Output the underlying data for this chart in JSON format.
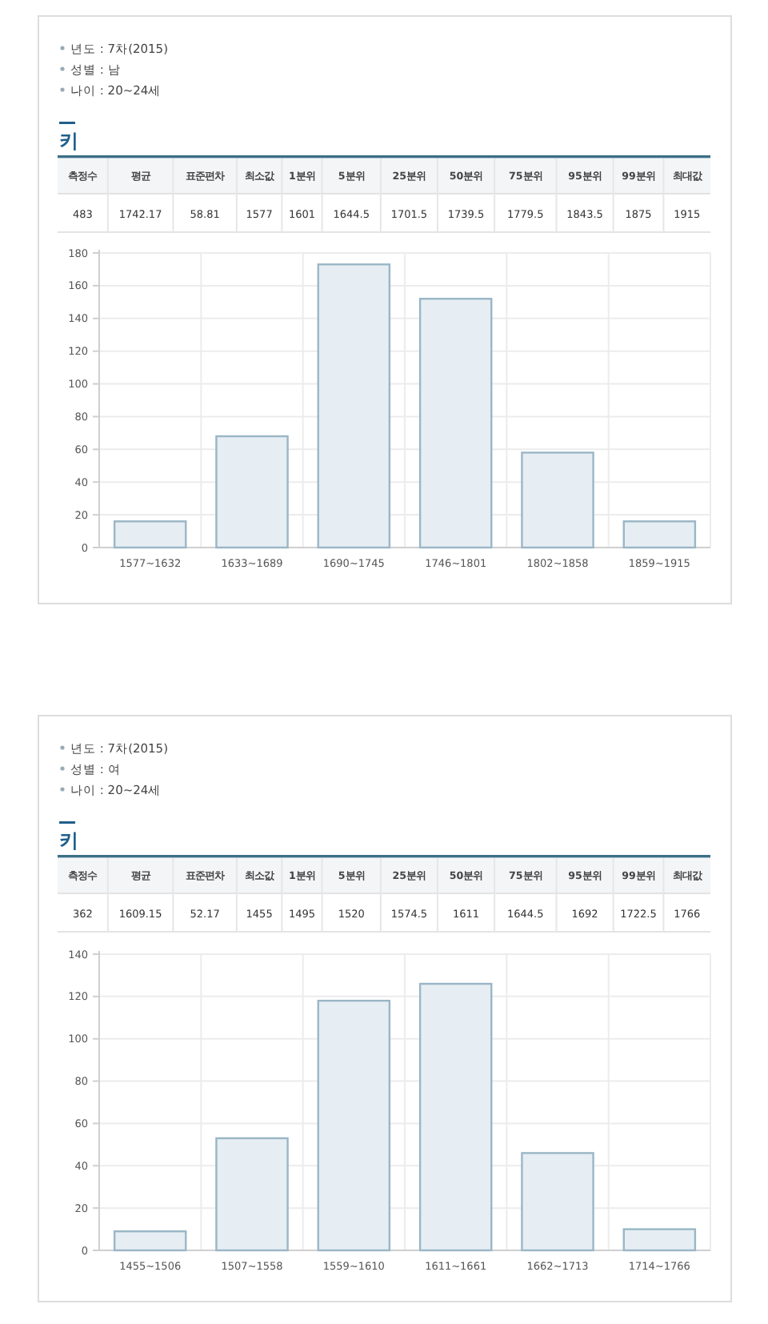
{
  "chart_data": [
    {
      "type": "other",
      "title": "키",
      "annotations": [
        "년도 : 7차(2015)",
        "성별 : 남",
        "나이 : 20~24세"
      ],
      "categories": [
        "측정수",
        "평균",
        "표준편차",
        "최소값",
        "1분위",
        "5분위",
        "25분위",
        "50분위",
        "75분위",
        "95분위",
        "99분위",
        "최대값"
      ],
      "values": [
        483,
        1742.17,
        58.81,
        1577,
        1601,
        1644.5,
        1701.5,
        1739.5,
        1779.5,
        1843.5,
        1875,
        1915
      ],
      "data_labels": true
    },
    {
      "type": "bar",
      "categories": [
        "1577~1632",
        "1633~1689",
        "1690~1745",
        "1746~1801",
        "1802~1858",
        "1859~1915"
      ],
      "values": [
        16,
        68,
        173,
        152,
        58,
        16
      ],
      "color": "#e6eef3",
      "ylim": [
        0,
        180
      ],
      "yticks": [
        0,
        20,
        40,
        60,
        80,
        100,
        120,
        140,
        160,
        180
      ],
      "grid": true
    },
    {
      "type": "other",
      "title": "키",
      "annotations": [
        "년도 : 7차(2015)",
        "성별 : 여",
        "나이 : 20~24세"
      ],
      "categories": [
        "측정수",
        "평균",
        "표준편차",
        "최소값",
        "1분위",
        "5분위",
        "25분위",
        "50분위",
        "75분위",
        "95분위",
        "99분위",
        "최대값"
      ],
      "values": [
        362,
        1609.15,
        52.17,
        1455,
        1495,
        1520,
        1574.5,
        1611,
        1644.5,
        1692,
        1722.5,
        1766
      ],
      "data_labels": true
    },
    {
      "type": "bar",
      "categories": [
        "1455~1506",
        "1507~1558",
        "1559~1610",
        "1611~1661",
        "1662~1713",
        "1714~1766"
      ],
      "values": [
        9,
        53,
        118,
        126,
        46,
        10
      ],
      "color": "#e6eef3",
      "ylim": [
        0,
        140
      ],
      "yticks": [
        0,
        20,
        40,
        60,
        80,
        100,
        120,
        140
      ],
      "grid": true
    }
  ]
}
